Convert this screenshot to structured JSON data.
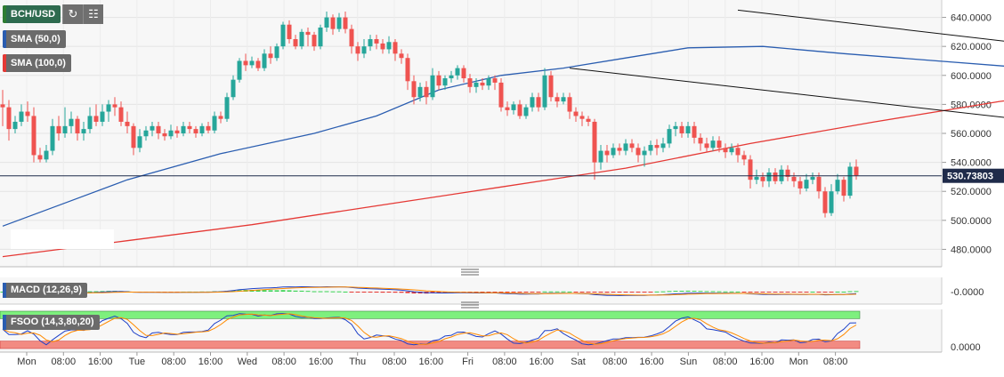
{
  "chart_data": {
    "type": "candlestick",
    "instrument": "BCH/USD",
    "price_axis": {
      "ticks": [
        "640.0000",
        "620.0000",
        "600.0000",
        "580.0000",
        "560.0000",
        "540.0000",
        "520.0000",
        "500.0000",
        "480.0000"
      ],
      "ylim": [
        468,
        652
      ]
    },
    "time_axis": {
      "ticks": [
        "Mon",
        "08:00",
        "16:00",
        "Tue",
        "08:00",
        "16:00",
        "Wed",
        "08:00",
        "16:00",
        "Thu",
        "08:00",
        "16:00",
        "Fri",
        "08:00",
        "16:00",
        "Sat",
        "08:00",
        "16:00",
        "Sun",
        "08:00",
        "16:00",
        "Mon",
        "08:00"
      ]
    },
    "current_price": {
      "label": "530.73803",
      "value": 530.74
    },
    "candles": [
      [
        580,
        578,
        590,
        565
      ],
      [
        578,
        563,
        583,
        555
      ],
      [
        563,
        568,
        572,
        560
      ],
      [
        568,
        575,
        580,
        565
      ],
      [
        575,
        572,
        582,
        568
      ],
      [
        572,
        545,
        578,
        540
      ],
      [
        545,
        542,
        550,
        540
      ],
      [
        542,
        548,
        552,
        540
      ],
      [
        548,
        565,
        570,
        545
      ],
      [
        565,
        560,
        572,
        555
      ],
      [
        560,
        565,
        578,
        557
      ],
      [
        565,
        570,
        575,
        560
      ],
      [
        570,
        560,
        572,
        555
      ],
      [
        560,
        563,
        568,
        555
      ],
      [
        563,
        572,
        578,
        560
      ],
      [
        572,
        568,
        580,
        565
      ],
      [
        568,
        575,
        580,
        565
      ],
      [
        575,
        580,
        583,
        568
      ],
      [
        580,
        578,
        585,
        572
      ],
      [
        578,
        568,
        582,
        565
      ],
      [
        568,
        565,
        575,
        560
      ],
      [
        565,
        550,
        567,
        545
      ],
      [
        550,
        558,
        563,
        547
      ],
      [
        558,
        562,
        565,
        555
      ],
      [
        562,
        565,
        568,
        558
      ],
      [
        565,
        560,
        568,
        556
      ],
      [
        560,
        558,
        563,
        555
      ],
      [
        558,
        562,
        566,
        556
      ],
      [
        562,
        560,
        565,
        557
      ],
      [
        560,
        565,
        568,
        558
      ],
      [
        565,
        563,
        568,
        560
      ],
      [
        563,
        560,
        565,
        557
      ],
      [
        560,
        565,
        567,
        558
      ],
      [
        565,
        562,
        568,
        560
      ],
      [
        562,
        572,
        575,
        560
      ],
      [
        572,
        570,
        575,
        567
      ],
      [
        570,
        585,
        588,
        568
      ],
      [
        585,
        597,
        600,
        583
      ],
      [
        597,
        610,
        612,
        595
      ],
      [
        610,
        607,
        615,
        603
      ],
      [
        607,
        610,
        613,
        605
      ],
      [
        610,
        605,
        612,
        603
      ],
      [
        605,
        615,
        618,
        603
      ],
      [
        615,
        612,
        620,
        608
      ],
      [
        612,
        620,
        622,
        610
      ],
      [
        620,
        635,
        637,
        618
      ],
      [
        635,
        625,
        638,
        622
      ],
      [
        625,
        620,
        628,
        618
      ],
      [
        620,
        630,
        632,
        618
      ],
      [
        630,
        628,
        633,
        620
      ],
      [
        628,
        620,
        630,
        617
      ],
      [
        620,
        633,
        635,
        618
      ],
      [
        633,
        640,
        644,
        630
      ],
      [
        640,
        632,
        642,
        628
      ],
      [
        632,
        640,
        643,
        630
      ],
      [
        640,
        632,
        644,
        629
      ],
      [
        632,
        620,
        635,
        615
      ],
      [
        620,
        615,
        623,
        610
      ],
      [
        615,
        620,
        625,
        612
      ],
      [
        620,
        625,
        628,
        617
      ],
      [
        625,
        622,
        628,
        618
      ],
      [
        622,
        618,
        625,
        615
      ],
      [
        618,
        623,
        627,
        615
      ],
      [
        623,
        615,
        625,
        610
      ],
      [
        615,
        612,
        618,
        608
      ],
      [
        612,
        596,
        615,
        590
      ],
      [
        596,
        585,
        600,
        580
      ],
      [
        585,
        592,
        595,
        582
      ],
      [
        592,
        585,
        596,
        580
      ],
      [
        585,
        600,
        605,
        583
      ],
      [
        600,
        593,
        603,
        590
      ],
      [
        593,
        598,
        600,
        590
      ],
      [
        598,
        600,
        603,
        595
      ],
      [
        600,
        605,
        607,
        597
      ],
      [
        605,
        598,
        607,
        595
      ],
      [
        598,
        592,
        601,
        588
      ],
      [
        592,
        595,
        598,
        588
      ],
      [
        595,
        593,
        598,
        590
      ],
      [
        593,
        598,
        600,
        590
      ],
      [
        598,
        595,
        600,
        590
      ],
      [
        595,
        578,
        598,
        575
      ],
      [
        578,
        576,
        582,
        572
      ],
      [
        576,
        580,
        582,
        573
      ],
      [
        580,
        572,
        583,
        570
      ],
      [
        572,
        578,
        580,
        570
      ],
      [
        578,
        585,
        588,
        575
      ],
      [
        585,
        578,
        588,
        575
      ],
      [
        578,
        600,
        605,
        576
      ],
      [
        600,
        585,
        603,
        582
      ],
      [
        585,
        582,
        588,
        578
      ],
      [
        582,
        585,
        588,
        580
      ],
      [
        585,
        575,
        588,
        570
      ],
      [
        575,
        572,
        578,
        568
      ],
      [
        572,
        570,
        575,
        565
      ],
      [
        570,
        568,
        572,
        565
      ],
      [
        568,
        540,
        570,
        528
      ],
      [
        540,
        548,
        552,
        535
      ],
      [
        548,
        545,
        552,
        540
      ],
      [
        545,
        550,
        553,
        543
      ],
      [
        550,
        548,
        553,
        545
      ],
      [
        548,
        553,
        556,
        545
      ],
      [
        553,
        550,
        556,
        547
      ],
      [
        550,
        545,
        553,
        540
      ],
      [
        545,
        548,
        551,
        537
      ],
      [
        548,
        552,
        555,
        545
      ],
      [
        552,
        550,
        556,
        545
      ],
      [
        550,
        553,
        557,
        547
      ],
      [
        553,
        563,
        566,
        550
      ],
      [
        563,
        565,
        568,
        558
      ],
      [
        565,
        560,
        568,
        557
      ],
      [
        560,
        565,
        568,
        557
      ],
      [
        565,
        557,
        568,
        553
      ],
      [
        557,
        553,
        560,
        548
      ],
      [
        553,
        550,
        557,
        547
      ],
      [
        550,
        555,
        558,
        548
      ],
      [
        555,
        550,
        558,
        547
      ],
      [
        550,
        547,
        553,
        543
      ],
      [
        547,
        550,
        553,
        545
      ],
      [
        550,
        545,
        553,
        540
      ],
      [
        545,
        542,
        548,
        538
      ],
      [
        542,
        528,
        545,
        522
      ],
      [
        528,
        530,
        535,
        525
      ],
      [
        530,
        527,
        533,
        523
      ],
      [
        527,
        533,
        536,
        523
      ],
      [
        533,
        527,
        536,
        525
      ],
      [
        527,
        535,
        538,
        525
      ],
      [
        535,
        530,
        538,
        527
      ],
      [
        530,
        527,
        533,
        523
      ],
      [
        527,
        522,
        530,
        518
      ],
      [
        522,
        528,
        532,
        520
      ],
      [
        528,
        530,
        533,
        525
      ],
      [
        530,
        520,
        533,
        515
      ],
      [
        520,
        505,
        523,
        502
      ],
      [
        505,
        520,
        525,
        503
      ],
      [
        520,
        528,
        532,
        518
      ],
      [
        528,
        517,
        530,
        513
      ],
      [
        517,
        537,
        540,
        515
      ],
      [
        537,
        531,
        542,
        528
      ]
    ],
    "sma50": [
      [
        0,
        496
      ],
      [
        10,
        512
      ],
      [
        20,
        528
      ],
      [
        35,
        546
      ],
      [
        50,
        560
      ],
      [
        60,
        572
      ],
      [
        70,
        590
      ],
      [
        80,
        600
      ],
      [
        90,
        605
      ],
      [
        100,
        612
      ],
      [
        110,
        619
      ],
      [
        122,
        620
      ],
      [
        135,
        615
      ],
      [
        150,
        610
      ],
      [
        165,
        605
      ],
      [
        180,
        600
      ],
      [
        195,
        598
      ],
      [
        210,
        592
      ],
      [
        225,
        583
      ],
      [
        240,
        574
      ],
      [
        255,
        564
      ],
      [
        270,
        560
      ],
      [
        285,
        556
      ],
      [
        300,
        552
      ],
      [
        315,
        546
      ],
      [
        330,
        542
      ],
      [
        340,
        540
      ],
      [
        346,
        538
      ]
    ],
    "sma100": [
      [
        0,
        475
      ],
      [
        20,
        486
      ],
      [
        40,
        497
      ],
      [
        60,
        510
      ],
      [
        80,
        523
      ],
      [
        100,
        536
      ],
      [
        120,
        553
      ],
      [
        140,
        568
      ],
      [
        160,
        582
      ],
      [
        175,
        590
      ],
      [
        190,
        596
      ],
      [
        205,
        600
      ],
      [
        220,
        602
      ],
      [
        240,
        601
      ],
      [
        260,
        598
      ],
      [
        280,
        588
      ],
      [
        300,
        578
      ],
      [
        320,
        568
      ],
      [
        335,
        560
      ],
      [
        346,
        556
      ]
    ],
    "channel": {
      "upper": [
        [
          118,
          645
        ],
        [
          346,
          531
        ]
      ],
      "lower": [
        [
          91,
          605
        ],
        [
          374,
          467
        ]
      ]
    },
    "indicators": {
      "macd": {
        "label": "MACD (12,26,9)",
        "tick": "-0.0000"
      },
      "fsoo": {
        "label": "FSOO (14,3,80,20)",
        "tick": "0.0000",
        "overbought": 80,
        "oversold": 20
      }
    },
    "legend": [
      {
        "label": "BCH/USD",
        "color": "#2e7d32"
      },
      {
        "label": "SMA (50,0)",
        "color": "#2a5db0"
      },
      {
        "label": "SMA (100,0)",
        "color": "#e53935"
      }
    ],
    "colors": {
      "up": "#26a69a",
      "down": "#ef5350",
      "sma50": "#2a5db0",
      "sma100": "#e53935",
      "macd": "#1e40c8",
      "signal": "#ff8a00"
    }
  }
}
